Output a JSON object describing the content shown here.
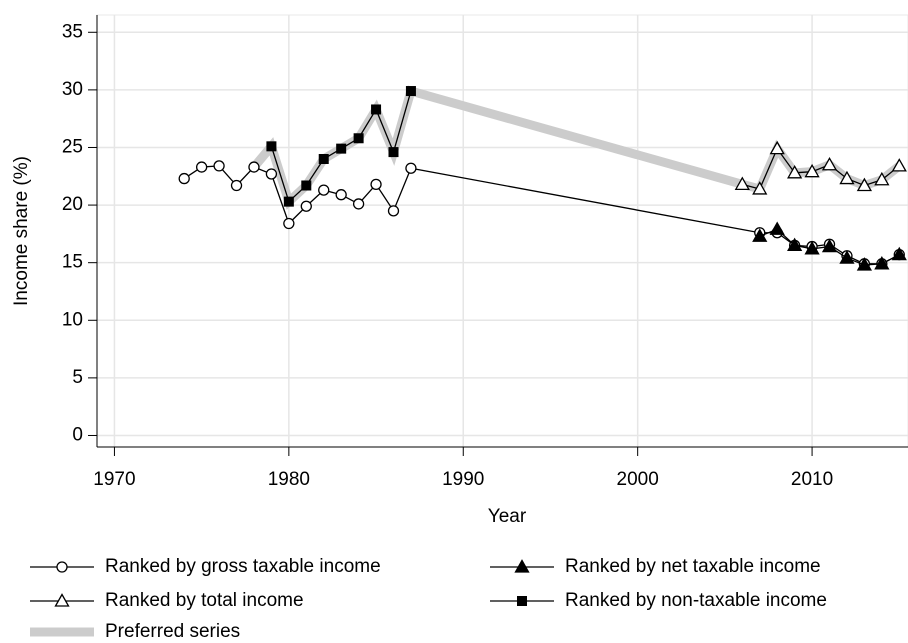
{
  "chart_data": {
    "type": "line",
    "x_label": "Year",
    "y_label": "Income share (%)",
    "xlim": [
      1969,
      2015.5
    ],
    "xticks": [
      1970,
      1980,
      1990,
      2000,
      2010
    ],
    "ylim": [
      -1,
      36.5
    ],
    "yticks": [
      0,
      5,
      10,
      15,
      20,
      25,
      30,
      35
    ],
    "grid": true,
    "series": [
      {
        "name": "Ranked by gross taxable income",
        "color": "#000000",
        "marker": "circle-open",
        "x": [
          1974,
          1975,
          1976,
          1977,
          1978,
          1979,
          1980,
          1981,
          1982,
          1983,
          1984,
          1985,
          1986,
          1987,
          2007,
          2008,
          2009,
          2010,
          2011,
          2012,
          2013,
          2014,
          2015
        ],
        "values": [
          22.3,
          23.3,
          23.4,
          21.7,
          23.3,
          22.7,
          18.4,
          19.9,
          21.3,
          20.9,
          20.1,
          21.8,
          19.5,
          23.2,
          17.6,
          17.6,
          16.5,
          16.4,
          16.6,
          15.6,
          14.9,
          14.9,
          15.7
        ]
      },
      {
        "name": "Ranked by net taxable income",
        "color": "#000000",
        "marker": "triangle-filled",
        "x": [
          2007,
          2008,
          2009,
          2010,
          2011,
          2012,
          2013,
          2014,
          2015
        ],
        "values": [
          17.3,
          17.9,
          16.5,
          16.2,
          16.4,
          15.4,
          14.8,
          14.9,
          15.7
        ]
      },
      {
        "name": "Ranked by total income",
        "color": "#000000",
        "marker": "triangle-open",
        "x": [
          2006,
          2007,
          2008,
          2009,
          2010,
          2011,
          2012,
          2013,
          2014,
          2015
        ],
        "values": [
          21.8,
          21.4,
          24.9,
          22.8,
          22.9,
          23.5,
          22.3,
          21.7,
          22.2,
          23.4
        ]
      },
      {
        "name": "Ranked by non-taxable income",
        "color": "#000000",
        "marker": "square-filled",
        "x": [
          1979,
          1980,
          1981,
          1982,
          1983,
          1984,
          1985,
          1986,
          1987
        ],
        "values": [
          25.1,
          20.3,
          21.7,
          24.0,
          24.9,
          25.8,
          28.3,
          24.6,
          29.9
        ]
      },
      {
        "name": "Preferred series",
        "color": "#cccccc",
        "marker": "band",
        "x": [
          1978,
          1979,
          1980,
          1981,
          1982,
          1983,
          1984,
          1985,
          1986,
          1987,
          2006,
          2007,
          2008,
          2009,
          2010,
          2011,
          2012,
          2013,
          2014,
          2015
        ],
        "values": [
          23.3,
          25.1,
          20.3,
          21.7,
          24.0,
          24.9,
          25.8,
          28.3,
          24.6,
          29.9,
          21.8,
          21.4,
          24.9,
          22.8,
          22.9,
          23.5,
          22.3,
          21.7,
          22.2,
          23.4
        ]
      }
    ]
  }
}
